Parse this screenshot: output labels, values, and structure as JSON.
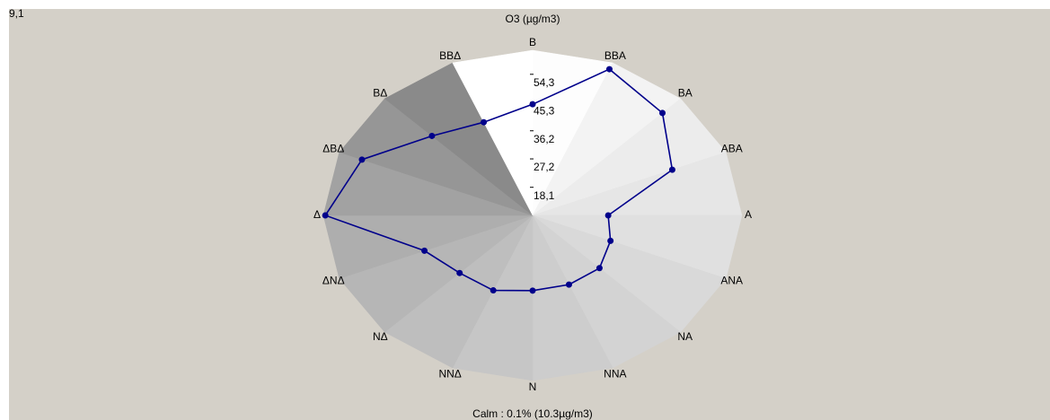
{
  "chart_data": {
    "type": "radar",
    "title": "O3  (µg/m3)",
    "corner_label": "9,1",
    "footnote": "Calm :   0.1% (10.3µg/m3)",
    "categories": [
      "B",
      "BBA",
      "BA",
      "ABA",
      "A",
      "ANA",
      "NA",
      "NNA",
      "N",
      "NNΔ",
      "NΔ",
      "ΔNΔ",
      "Δ",
      "ΔBΔ",
      "BΔ",
      "BBΔ"
    ],
    "values": [
      44.7,
      59.8,
      55.5,
      47.3,
      28.2,
      30.4,
      33.0,
      33.1,
      33.2,
      35.1,
      35.2,
      38.7,
      61.5,
      55.8,
      45.1,
      41.4
    ],
    "color": "#00008b",
    "rlim": [
      9.1,
      62.0
    ],
    "rticks": [
      {
        "value": 18.1,
        "label": "18,1"
      },
      {
        "value": 27.2,
        "label": "27,2"
      },
      {
        "value": 36.2,
        "label": "36,2"
      },
      {
        "value": 45.3,
        "label": "45,3"
      },
      {
        "value": 54.3,
        "label": "54,3"
      }
    ],
    "sector_colors": [
      "#fdfdfd",
      "#f3f3f3",
      "#ececec",
      "#e6e6e6",
      "#e0e0e0",
      "#d9d9d9",
      "#d3d3d3",
      "#cdcdcd",
      "#c6c6c6",
      "#bebebe",
      "#b6b6b6",
      "#aeaeae",
      "#a2a2a2",
      "#969696",
      "#8a8a8a",
      "#ffffff"
    ]
  }
}
